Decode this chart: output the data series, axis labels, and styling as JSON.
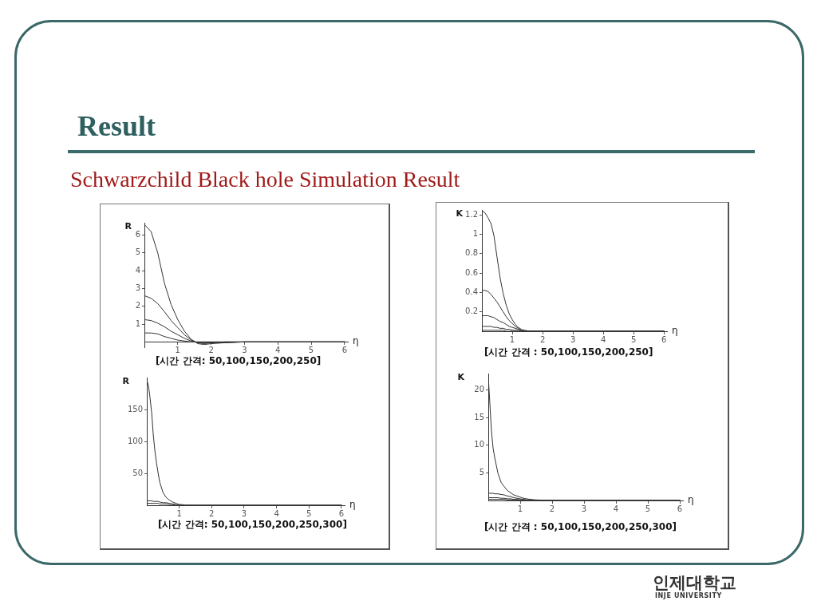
{
  "chart_data": [
    {
      "type": "line",
      "title": "Result",
      "subtitle": "Schwarzchild Black hole Simulation Result",
      "xlabel": "η",
      "ylabel": "R",
      "annotations": [
        "[시간 간격: 50,100,150,200,250]",
        "인제대학교",
        "INJE UNIVERSITY"
      ],
      "x": [
        0,
        0.2,
        0.4,
        0.6,
        0.8,
        1,
        1.2,
        1.4,
        1.6,
        1.8,
        2,
        2.4,
        3,
        4,
        5,
        6
      ],
      "series": [
        {
          "color": "#333333",
          "values": [
            6.6,
            6.2,
            5,
            3.3,
            2.1,
            1.25,
            0.6,
            0.15,
            -0.1,
            -0.15,
            -0.1,
            -0.05,
            0,
            0,
            0,
            0
          ]
        },
        {
          "color": "#333333",
          "values": [
            2.6,
            2.45,
            2.15,
            1.7,
            1.2,
            0.8,
            0.4,
            0.1,
            -0.05,
            -0.1,
            -0.05,
            -0.05,
            0,
            0,
            0,
            0
          ]
        },
        {
          "color": "#333333",
          "values": [
            1.25,
            1.2,
            1.05,
            0.85,
            0.6,
            0.4,
            0.2,
            0.05,
            -0.05,
            -0.05,
            -0.05,
            0,
            0,
            0,
            0,
            0
          ]
        },
        {
          "color": "#333333",
          "values": [
            0.5,
            0.5,
            0.45,
            0.3,
            0.2,
            0.1,
            0.05,
            0,
            0,
            0,
            0,
            0,
            0,
            0,
            0,
            0
          ]
        }
      ],
      "xlim": [
        0,
        6.1
      ],
      "ylim": [
        -0.3,
        6.7
      ],
      "xticks": [
        1,
        2,
        3,
        4,
        5,
        6
      ],
      "yticks": [
        1,
        2,
        3,
        4,
        5,
        6
      ],
      "marker": "none"
    },
    {
      "type": "line",
      "xlabel": "η",
      "ylabel": "K",
      "annotations": [
        "[시간 간격 : 50,100,150,200,250]"
      ],
      "x": [
        0,
        0.1,
        0.2,
        0.3,
        0.4,
        0.5,
        0.6,
        0.7,
        0.8,
        0.9,
        1,
        1.1,
        1.2,
        1.3,
        1.4,
        1.6,
        2,
        3,
        4,
        5,
        6
      ],
      "series": [
        {
          "color": "#333333",
          "values": [
            1.24,
            1.22,
            1.17,
            1.11,
            0.98,
            0.76,
            0.55,
            0.39,
            0.27,
            0.18,
            0.12,
            0.07,
            0.04,
            0.02,
            0.01,
            0,
            0,
            0,
            0,
            0,
            0
          ]
        },
        {
          "color": "#333333",
          "values": [
            0.42,
            0.42,
            0.41,
            0.38,
            0.34,
            0.3,
            0.25,
            0.2,
            0.15,
            0.11,
            0.08,
            0.05,
            0.03,
            0.01,
            0,
            0,
            0,
            0,
            0,
            0,
            0
          ]
        },
        {
          "color": "#333333",
          "values": [
            0.16,
            0.16,
            0.16,
            0.15,
            0.14,
            0.12,
            0.1,
            0.09,
            0.07,
            0.05,
            0.04,
            0.03,
            0.02,
            0.01,
            0,
            0,
            0,
            0,
            0,
            0,
            0
          ]
        },
        {
          "color": "#333333",
          "values": [
            0.05,
            0.05,
            0.05,
            0.05,
            0.04,
            0.04,
            0.03,
            0.03,
            0.02,
            0.02,
            0.01,
            0.01,
            0.01,
            0,
            0,
            0,
            0,
            0,
            0,
            0,
            0
          ]
        },
        {
          "color": "#333333",
          "values": [
            0.01,
            0.01,
            0.01,
            0.01,
            0.01,
            0.01,
            0.01,
            0.01,
            0,
            0,
            0,
            0,
            0,
            0,
            0,
            0,
            0,
            0,
            0,
            0,
            0
          ]
        }
      ],
      "xlim": [
        0,
        6.1
      ],
      "ylim": [
        0,
        1.25
      ],
      "xticks": [
        1,
        2,
        3,
        4,
        5,
        6
      ],
      "yticks": [
        0.2,
        0.4,
        0.6,
        0.8,
        1,
        1.2
      ],
      "marker": "none"
    },
    {
      "type": "line",
      "xlabel": "η",
      "ylabel": "R",
      "annotations": [
        "[시간 간격: 50,100,150,200,250,300]"
      ],
      "x": [
        0,
        0.05,
        0.1,
        0.15,
        0.2,
        0.25,
        0.3,
        0.35,
        0.4,
        0.5,
        0.6,
        0.7,
        0.8,
        0.9,
        1,
        1.1,
        1.2,
        1.5,
        2,
        3,
        4,
        5,
        6
      ],
      "series": [
        {
          "color": "#333333",
          "values": [
            195,
            188,
            168,
            145,
            110,
            85,
            66,
            50,
            36,
            20,
            12,
            8,
            5,
            3,
            1,
            1,
            0,
            0,
            0,
            0,
            0,
            0,
            0
          ]
        },
        {
          "color": "#333333",
          "values": [
            7,
            7,
            7,
            7,
            6,
            6,
            6,
            6,
            5,
            4,
            4,
            3,
            2,
            1,
            1,
            0,
            0,
            0,
            0,
            0,
            0,
            0,
            0
          ]
        },
        {
          "color": "#333333",
          "values": [
            3,
            3,
            3,
            3,
            3,
            3,
            3,
            3,
            2,
            2,
            2,
            1,
            1,
            0,
            0,
            0,
            0,
            0,
            0,
            0,
            0,
            0,
            0
          ]
        }
      ],
      "xlim": [
        0,
        6.1
      ],
      "ylim": [
        0,
        200
      ],
      "xticks": [
        1,
        2,
        3,
        4,
        5,
        6
      ],
      "yticks": [
        50,
        100,
        150
      ],
      "marker": "none"
    },
    {
      "type": "line",
      "xlabel": "η",
      "ylabel": "K",
      "annotations": [
        "[시간 간격 : 50,100,150,200,250,300]"
      ],
      "x": [
        0,
        0.05,
        0.1,
        0.15,
        0.2,
        0.3,
        0.4,
        0.5,
        0.6,
        0.7,
        0.8,
        0.9,
        1,
        1.1,
        1.2,
        1.3,
        1.5,
        2,
        3,
        4,
        5,
        6
      ],
      "series": [
        {
          "color": "#333333",
          "values": [
            22.5,
            17.5,
            12.5,
            9.5,
            7.8,
            5,
            3.3,
            2.5,
            1.8,
            1.4,
            1,
            0.8,
            0.6,
            0.4,
            0.3,
            0.2,
            0.1,
            0,
            0,
            0,
            0,
            0
          ]
        },
        {
          "color": "#333333",
          "values": [
            1.3,
            1.3,
            1.3,
            1.3,
            1.2,
            1.2,
            1.1,
            1,
            0.8,
            0.7,
            0.5,
            0.4,
            0.3,
            0.2,
            0.1,
            0.1,
            0,
            0,
            0,
            0,
            0,
            0
          ]
        },
        {
          "color": "#333333",
          "values": [
            0.5,
            0.5,
            0.5,
            0.5,
            0.5,
            0.5,
            0.4,
            0.4,
            0.3,
            0.3,
            0.2,
            0.2,
            0.1,
            0.1,
            0,
            0,
            0,
            0,
            0,
            0,
            0,
            0
          ]
        },
        {
          "color": "#333333",
          "values": [
            0.2,
            0.2,
            0.2,
            0.2,
            0.2,
            0.2,
            0.2,
            0.2,
            0.1,
            0.1,
            0.1,
            0.1,
            0.1,
            0,
            0,
            0,
            0,
            0,
            0,
            0,
            0,
            0
          ]
        }
      ],
      "xlim": [
        0,
        6.1
      ],
      "ylim": [
        0,
        23
      ],
      "xticks": [
        1,
        2,
        3,
        4,
        5,
        6
      ],
      "yticks": [
        5,
        10,
        15,
        20
      ],
      "marker": "none"
    }
  ]
}
